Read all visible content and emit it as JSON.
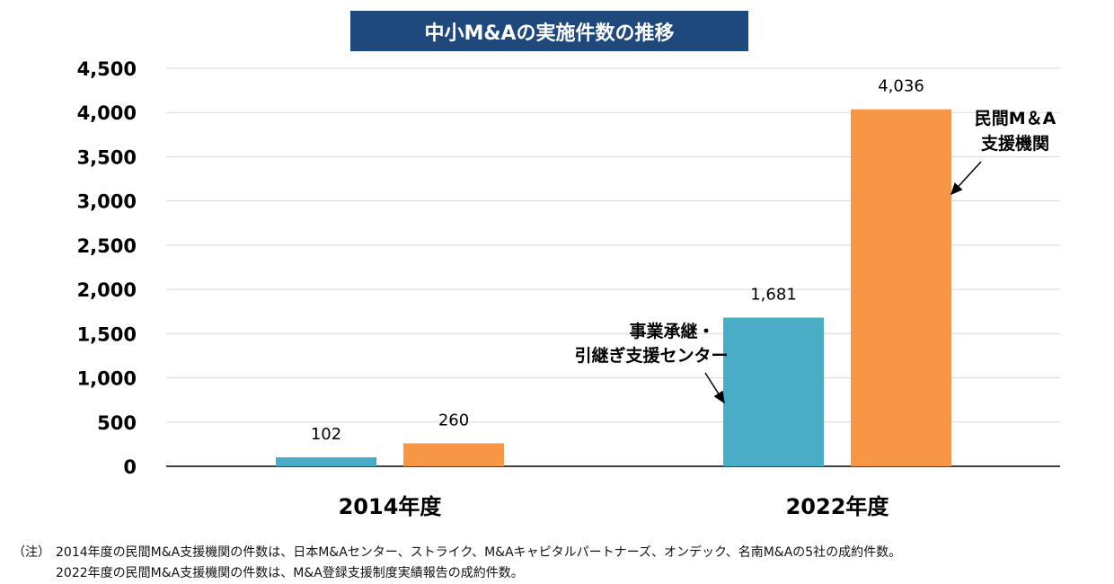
{
  "chart_data": {
    "type": "bar",
    "title": "中小M&Aの実施件数の推移",
    "categories": [
      "2014年度",
      "2022年度"
    ],
    "series": [
      {
        "name": "事業承継・引継ぎ支援センター",
        "values": [
          102,
          1681
        ],
        "color": "#4bacc6"
      },
      {
        "name": "民間M＆A支援機関",
        "values": [
          260,
          4036
        ],
        "color": "#f79646"
      }
    ],
    "ylim": [
      0,
      4500
    ],
    "yticks": [
      0,
      500,
      1000,
      1500,
      2000,
      2500,
      3000,
      3500,
      4000,
      4500
    ],
    "ytick_labels": [
      "0",
      "500",
      "1,000",
      "1,500",
      "2,000",
      "2,500",
      "3,000",
      "3,500",
      "4,000",
      "4,500"
    ],
    "data_labels": [
      [
        "102",
        "260"
      ],
      [
        "1,681",
        "4,036"
      ]
    ],
    "grid": true,
    "annotations": [
      {
        "lines": [
          "事業承継・",
          "引継ぎ支援センター"
        ],
        "target": "2022年度 事業承継・引継ぎ支援センター"
      },
      {
        "lines": [
          "民間M＆A",
          "支援機関"
        ],
        "target": "2022年度 民間M＆A支援機関"
      }
    ]
  },
  "notes": {
    "prefix": "（注）",
    "line1": "2014年度の民間M&A支援機関の件数は、日本M&Aセンター、ストライク、M&Aキャピタルパートナーズ、オンデック、名南M&Aの5社の成約件数。",
    "line2": "2022年度の民間M&A支援機関の件数は、M&A登録支援制度実績報告の成約件数。"
  }
}
